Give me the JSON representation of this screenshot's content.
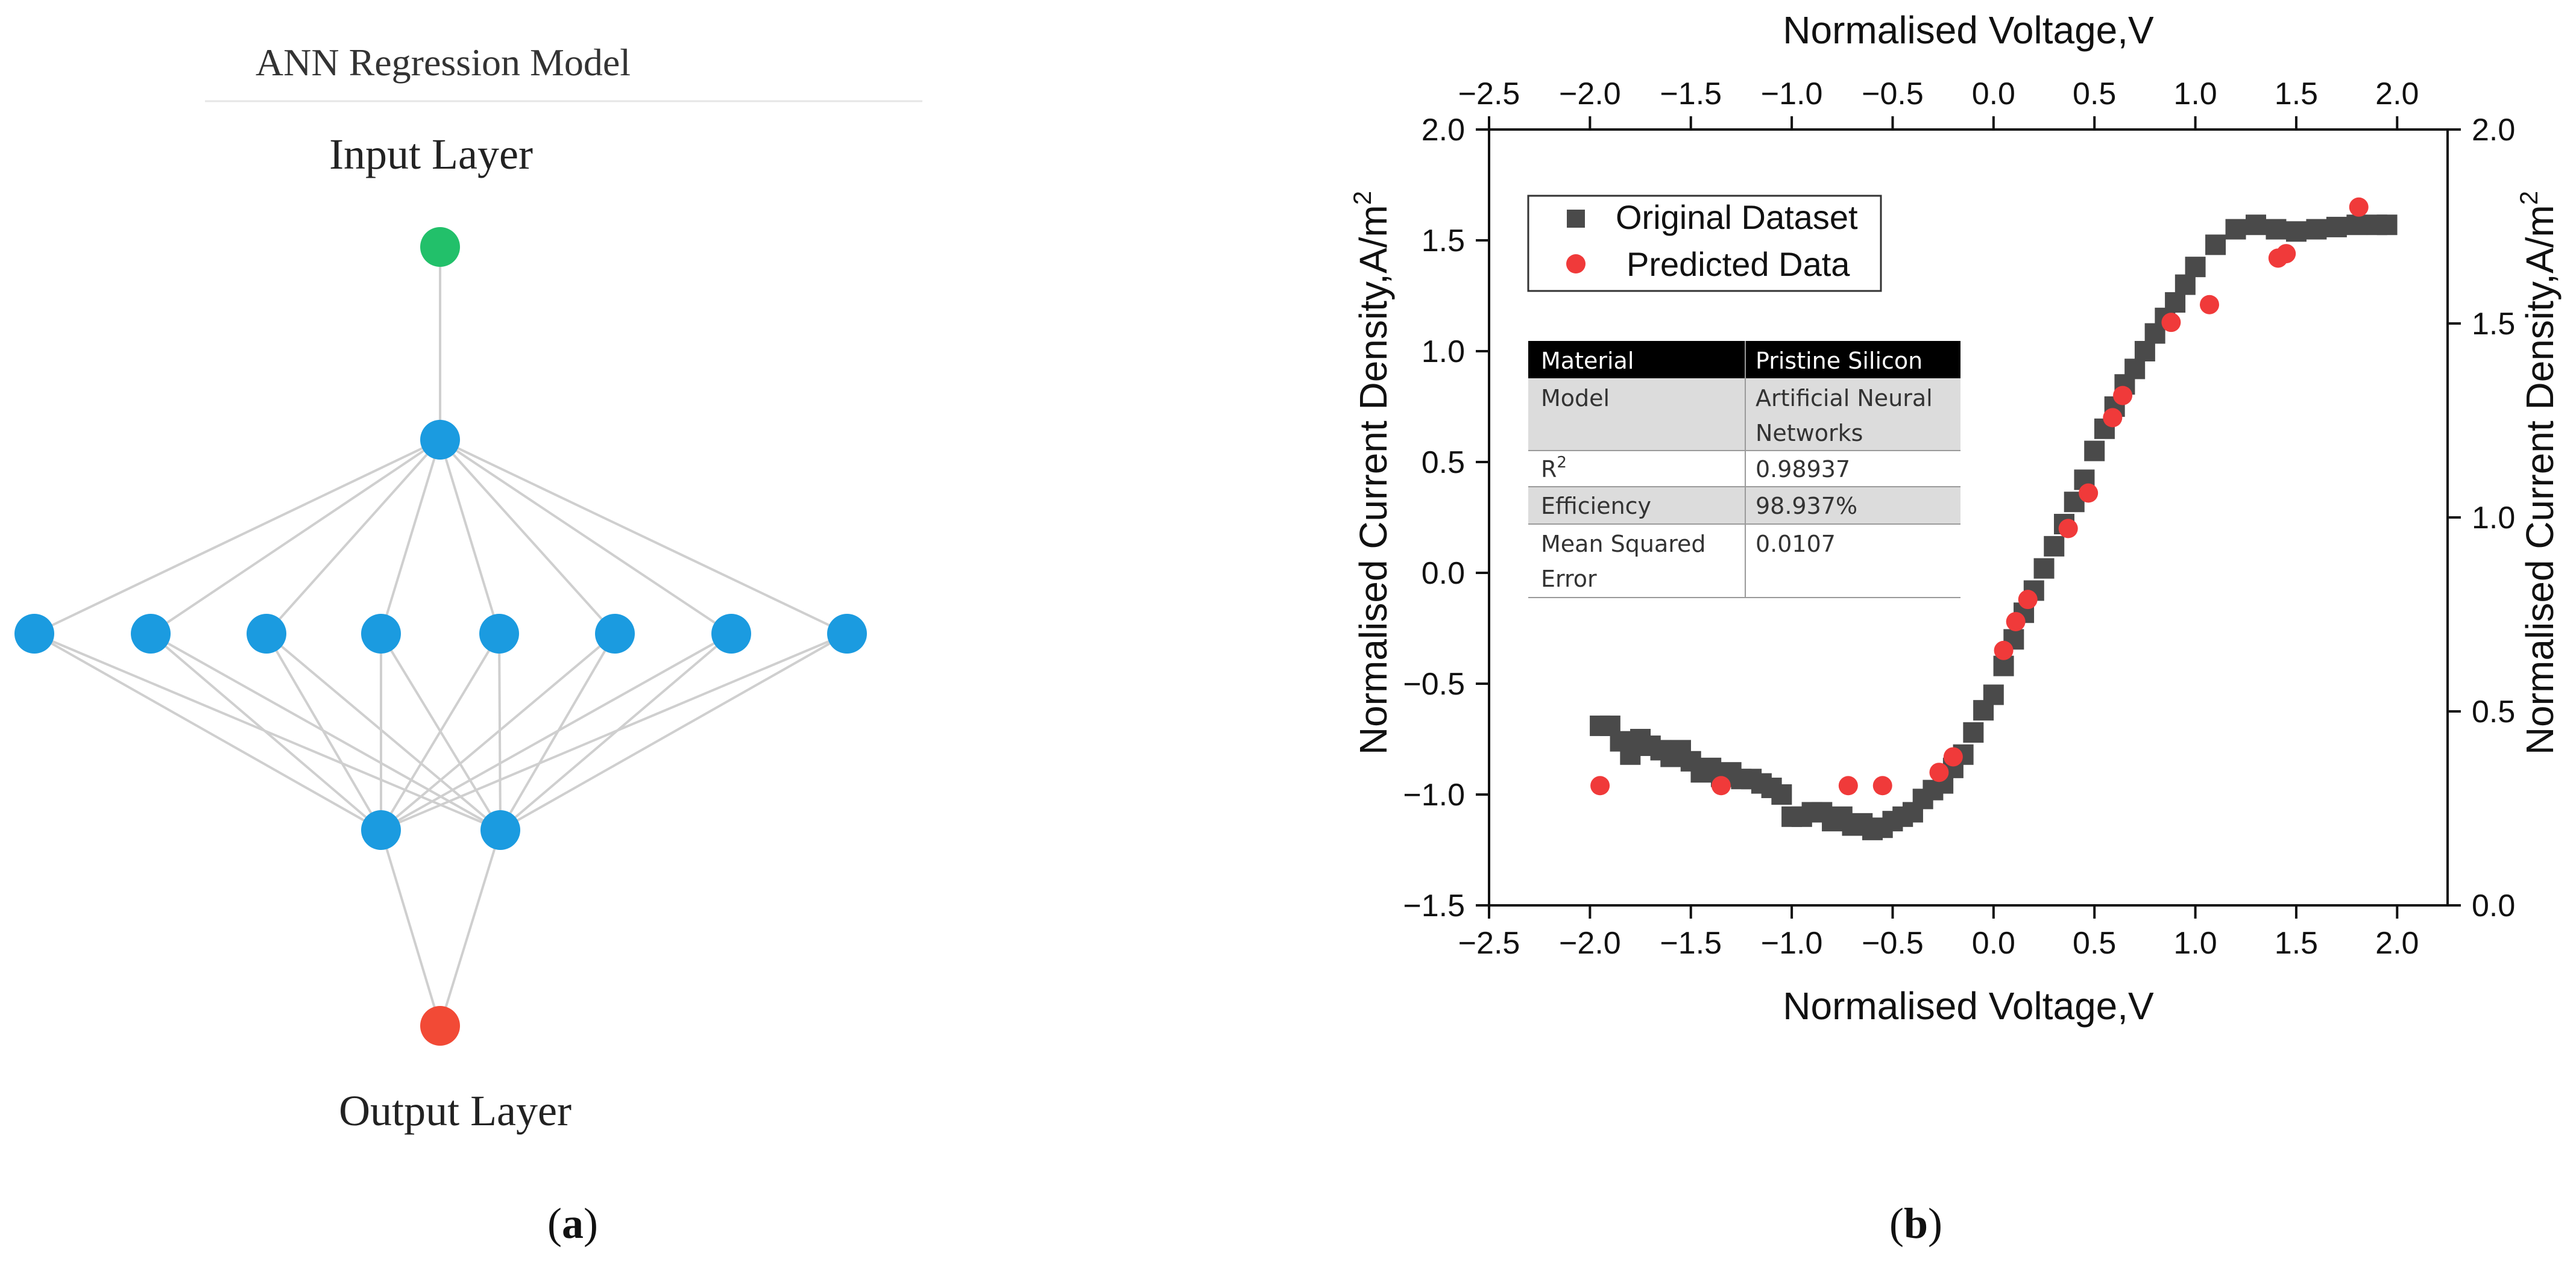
{
  "panel_a": {
    "title": "ANN Regression Model",
    "input_label": "Input Layer",
    "output_label": "Output Layer",
    "caption_letter": "a",
    "colors": {
      "input": "#22c06a",
      "hidden": "#1b9be0",
      "output": "#f24a36",
      "edge": "#cfcfcf"
    },
    "layers": [
      1,
      1,
      8,
      2,
      1
    ]
  },
  "panel_b": {
    "caption_letter": "b",
    "chart_data": {
      "type": "scatter",
      "title": "",
      "xlabel": "Normalised Voltage,V",
      "xlabel_top": "Normalised Voltage,V",
      "ylabel": "Normalised Current Density,A/m",
      "ylabel_sup": "2",
      "ylabel_right": "Normalised Current Density,A/m",
      "ylabel_right_sup": "2",
      "xlim": [
        -2.5,
        2.25
      ],
      "ylim": [
        -1.5,
        2.0
      ],
      "ylim_right": [
        0.0,
        2.0
      ],
      "xticks": [
        -2.5,
        -2.0,
        -1.5,
        -1.0,
        -0.5,
        0.0,
        0.5,
        1.0,
        1.5,
        2.0
      ],
      "xtick_labels": [
        "−2.5",
        "−2.0",
        "−1.5",
        "−1.0",
        "−0.5",
        "0.0",
        "0.5",
        "1.0",
        "1.5",
        "2.0"
      ],
      "yticks": [
        -1.5,
        -1.0,
        -0.5,
        0.0,
        0.5,
        1.0,
        1.5,
        2.0
      ],
      "ytick_labels": [
        "−1.5",
        "−1.0",
        "−0.5",
        "0.0",
        "0.5",
        "1.0",
        "1.5",
        "2.0"
      ],
      "yticks_right": [
        0.0,
        0.5,
        1.0,
        1.5,
        2.0
      ],
      "ytick_right_labels": [
        "0.0",
        "0.5",
        "1.0",
        "1.5",
        "2.0"
      ],
      "grid": false,
      "legend_position": "top-left",
      "series": [
        {
          "name": "Original Dataset",
          "marker": "square",
          "color": "#4a4a4a",
          "x": [
            -1.95,
            -1.9,
            -1.85,
            -1.8,
            -1.75,
            -1.7,
            -1.65,
            -1.6,
            -1.55,
            -1.5,
            -1.45,
            -1.4,
            -1.35,
            -1.3,
            -1.25,
            -1.2,
            -1.15,
            -1.1,
            -1.05,
            -1.0,
            -0.95,
            -0.9,
            -0.85,
            -0.8,
            -0.75,
            -0.7,
            -0.65,
            -0.6,
            -0.55,
            -0.5,
            -0.45,
            -0.4,
            -0.35,
            -0.3,
            -0.25,
            -0.2,
            -0.15,
            -0.1,
            -0.05,
            0.0,
            0.05,
            0.1,
            0.15,
            0.2,
            0.25,
            0.3,
            0.35,
            0.4,
            0.45,
            0.5,
            0.55,
            0.6,
            0.65,
            0.7,
            0.75,
            0.8,
            0.85,
            0.9,
            0.95,
            1.0,
            1.1,
            1.2,
            1.3,
            1.4,
            1.5,
            1.6,
            1.7,
            1.8,
            1.9,
            1.95
          ],
          "y": [
            -0.69,
            -0.69,
            -0.76,
            -0.82,
            -0.75,
            -0.78,
            -0.8,
            -0.83,
            -0.8,
            -0.85,
            -0.9,
            -0.88,
            -0.92,
            -0.9,
            -0.93,
            -0.93,
            -0.95,
            -0.97,
            -1.0,
            -1.1,
            -1.1,
            -1.08,
            -1.08,
            -1.12,
            -1.1,
            -1.14,
            -1.13,
            -1.16,
            -1.15,
            -1.12,
            -1.1,
            -1.08,
            -1.02,
            -0.98,
            -0.95,
            -0.88,
            -0.82,
            -0.72,
            -0.62,
            -0.55,
            -0.42,
            -0.3,
            -0.18,
            -0.08,
            0.02,
            0.12,
            0.22,
            0.32,
            0.42,
            0.55,
            0.65,
            0.75,
            0.85,
            0.92,
            1.0,
            1.08,
            1.15,
            1.22,
            1.3,
            1.38,
            1.48,
            1.55,
            1.57,
            1.55,
            1.54,
            1.55,
            1.56,
            1.57,
            1.57,
            1.57
          ]
        },
        {
          "name": "Predicted Data",
          "marker": "circle",
          "color": "#f03a3a",
          "x": [
            -1.95,
            -1.35,
            -0.72,
            -0.55,
            -0.27,
            -0.2,
            0.05,
            0.11,
            0.17,
            0.37,
            0.47,
            0.59,
            0.64,
            0.88,
            1.07,
            1.41,
            1.45,
            1.81
          ],
          "y": [
            -0.96,
            -0.96,
            -0.96,
            -0.96,
            -0.9,
            -0.83,
            -0.35,
            -0.22,
            -0.12,
            0.2,
            0.36,
            0.7,
            0.8,
            1.13,
            1.21,
            1.42,
            1.44,
            1.65
          ]
        }
      ]
    },
    "info_table": [
      {
        "key": "Material",
        "value": "Pristine Silicon"
      },
      {
        "key": "Model",
        "value": "Artificial Neural Networks"
      },
      {
        "key": "R",
        "key_sup": "2",
        "value": "0.98937"
      },
      {
        "key": "Efficiency",
        "value": "98.937%"
      },
      {
        "key": "Mean Squared Error",
        "value": "0.0107"
      }
    ]
  }
}
